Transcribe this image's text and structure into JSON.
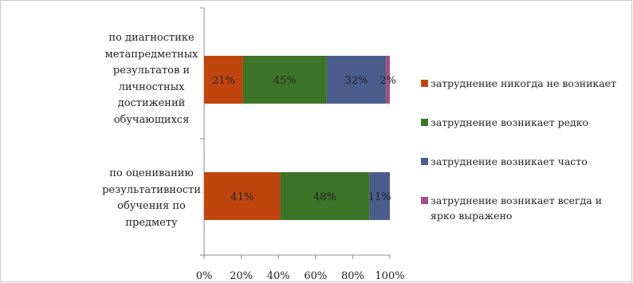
{
  "chart_data": {
    "type": "bar",
    "orientation": "horizontal",
    "stacked": true,
    "percent": true,
    "categories": [
      "по диагностике метапредметных результатов и личностных достижений обучающихся",
      "по оцениванию результативности обучения по предмету"
    ],
    "series": [
      {
        "name": "затруднение никогда не возникает",
        "color": "#c0440e",
        "values": [
          21,
          41
        ],
        "labels": [
          "21%",
          "41%"
        ]
      },
      {
        "name": "затруднение возникает редко",
        "color": "#3c7428",
        "values": [
          45,
          48
        ],
        "labels": [
          "45%",
          "48%"
        ]
      },
      {
        "name": "затруднение возникает часто",
        "color": "#4b5d8c",
        "values": [
          32,
          11
        ],
        "labels": [
          "32%",
          "11%"
        ]
      },
      {
        "name": "затруднение возникает всегда и ярко выражено",
        "color": "#a0517f",
        "values": [
          2,
          0
        ],
        "labels": [
          "2%",
          ""
        ]
      }
    ],
    "xticks": [
      "0%",
      "20%",
      "40%",
      "60%",
      "80%",
      "100%"
    ],
    "xlim": [
      0,
      100
    ],
    "grid": false,
    "legend_position": "right"
  }
}
